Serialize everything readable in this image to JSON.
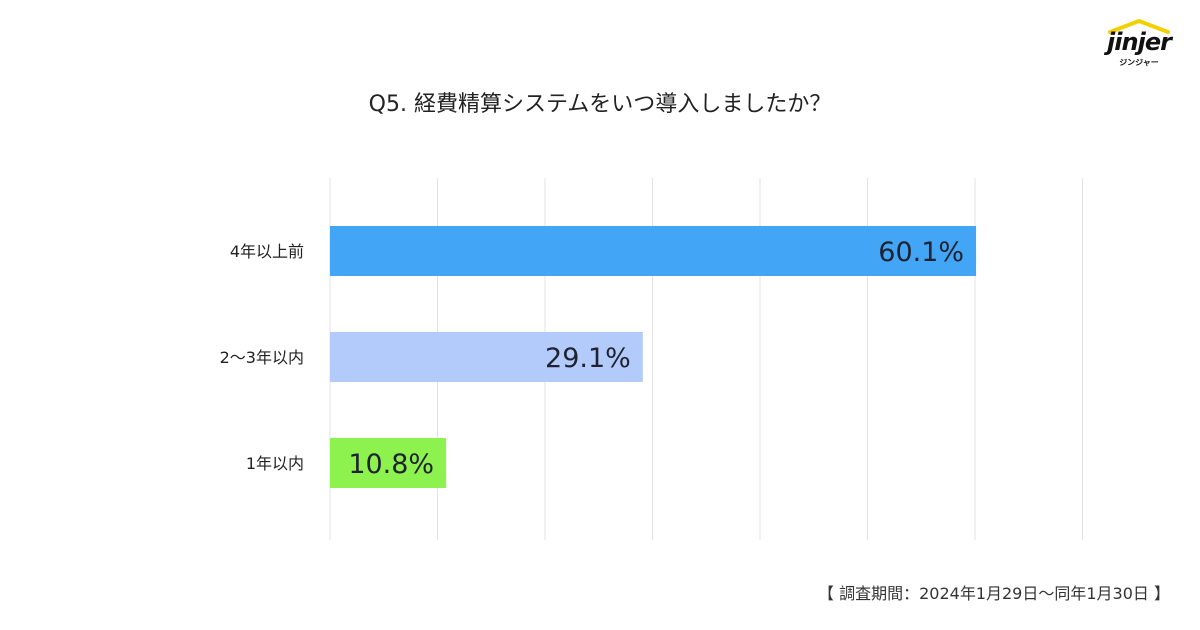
{
  "logo": {
    "wordmark": "jinjer",
    "subtext": "ジンジャー",
    "accent_color": "#F2D100"
  },
  "title": "Q5. 経費精算システムをいつ導入しましたか？",
  "footnote": "【 調査期間：2024年1月29日〜同年1月30日 】",
  "chart_data": {
    "type": "bar",
    "orientation": "horizontal",
    "categories": [
      "4年以上前",
      "2〜3年以内",
      "1年以内"
    ],
    "values": [
      60.1,
      29.1,
      10.8
    ],
    "value_labels": [
      "60.1%",
      "29.1%",
      "10.8%"
    ],
    "colors": [
      "#42A5F5",
      "#B3CBFB",
      "#8DF24E"
    ],
    "xlim": [
      0,
      70
    ],
    "grid": true
  }
}
